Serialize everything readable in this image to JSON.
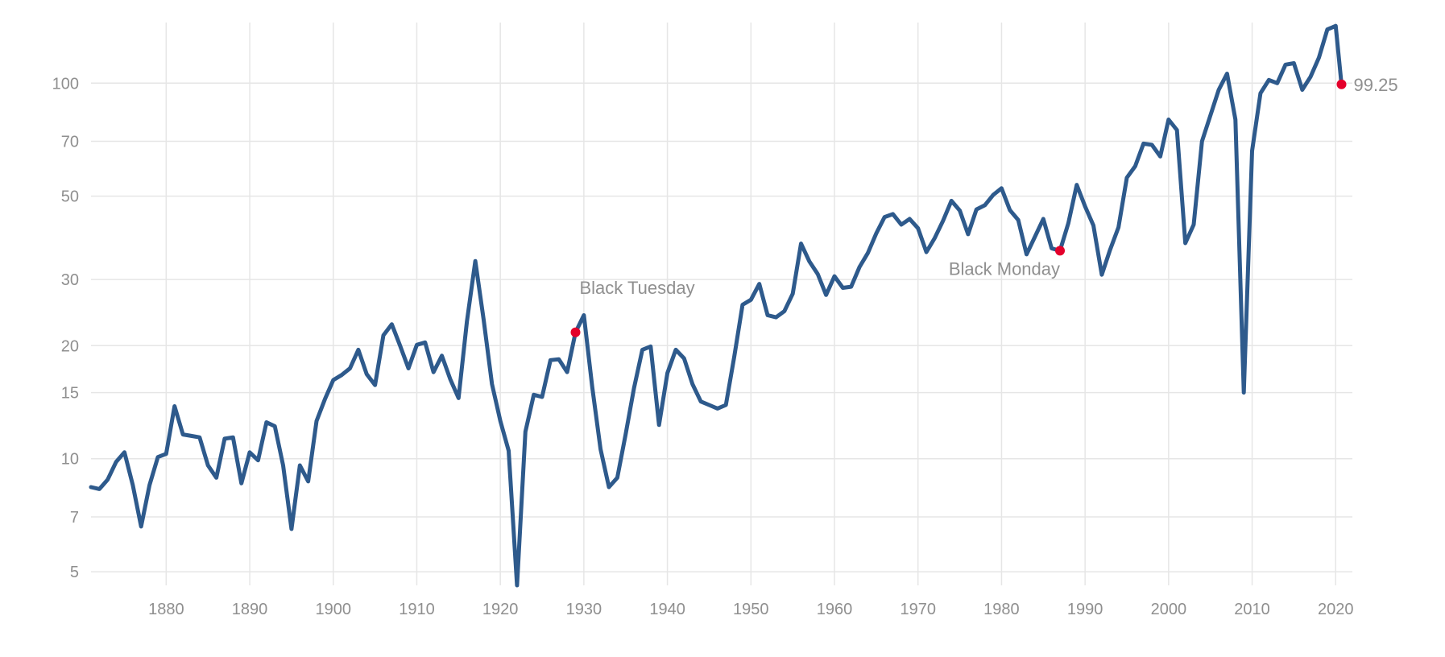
{
  "colors": {
    "line": "#2e5a8c",
    "marker": "#e4002b",
    "grid": "#e6e6e6",
    "text": "#8f8f8f"
  },
  "chart_data": {
    "type": "line",
    "title": "",
    "xlabel": "",
    "ylabel": "",
    "x_scale": "linear",
    "y_scale": "log",
    "xlim": [
      1871,
      2022
    ],
    "ylim": [
      4.6,
      145
    ],
    "grid": true,
    "legend": "none",
    "x_ticks": [
      1880,
      1890,
      1900,
      1910,
      1920,
      1930,
      1940,
      1950,
      1960,
      1970,
      1980,
      1990,
      2000,
      2010,
      2020
    ],
    "x_tick_labels": [
      "1880",
      "1890",
      "1900",
      "1910",
      "1920",
      "1930",
      "1940",
      "1950",
      "1960",
      "1970",
      "1980",
      "1990",
      "2000",
      "2010",
      "2020"
    ],
    "y_ticks": [
      5,
      7,
      10,
      15,
      20,
      30,
      50,
      70,
      100
    ],
    "y_tick_labels": [
      "5",
      "7",
      "10",
      "15",
      "20",
      "30",
      "50",
      "70",
      "100"
    ],
    "series": [
      {
        "x": [
          1871,
          1872,
          1873,
          1874,
          1875,
          1876,
          1877,
          1878,
          1879,
          1880,
          1881,
          1882,
          1883,
          1884,
          1885,
          1886,
          1887,
          1888,
          1889,
          1890,
          1891,
          1892,
          1893,
          1894,
          1895,
          1896,
          1897,
          1898,
          1899,
          1900,
          1901,
          1902,
          1903,
          1904,
          1905,
          1906,
          1907,
          1908,
          1909,
          1910,
          1911,
          1912,
          1913,
          1914,
          1915,
          1916,
          1917,
          1918,
          1919,
          1920,
          1921,
          1922,
          1923,
          1924,
          1925,
          1926,
          1927,
          1928,
          1929,
          1930,
          1931,
          1932,
          1933,
          1934,
          1935,
          1936,
          1937,
          1938,
          1939,
          1940,
          1941,
          1942,
          1943,
          1944,
          1945,
          1946,
          1947,
          1948,
          1949,
          1950,
          1951,
          1952,
          1953,
          1954,
          1955,
          1956,
          1957,
          1958,
          1959,
          1960,
          1961,
          1962,
          1963,
          1964,
          1965,
          1966,
          1967,
          1968,
          1969,
          1970,
          1971,
          1972,
          1973,
          1974,
          1975,
          1976,
          1977,
          1978,
          1979,
          1980,
          1981,
          1982,
          1983,
          1984,
          1985,
          1986,
          1987,
          1988,
          1989,
          1990,
          1991,
          1992,
          1993,
          1994,
          1995,
          1996,
          1997,
          1998,
          1999,
          2000,
          2001,
          2002,
          2003,
          2004,
          2005,
          2006,
          2007,
          2008,
          2009,
          2010,
          2011,
          2012,
          2013,
          2014,
          2015,
          2016,
          2017,
          2018,
          2019,
          2020,
          2020.7
        ],
        "y": [
          8.4,
          8.3,
          8.8,
          9.8,
          10.4,
          8.5,
          6.6,
          8.5,
          10.1,
          10.3,
          13.8,
          11.6,
          11.5,
          11.4,
          9.6,
          8.9,
          11.3,
          11.4,
          8.6,
          10.4,
          9.9,
          12.5,
          12.2,
          9.6,
          6.5,
          9.6,
          8.7,
          12.6,
          14.4,
          16.2,
          16.7,
          17.4,
          19.5,
          16.8,
          15.7,
          21.3,
          22.8,
          20.0,
          17.4,
          20.1,
          20.4,
          17.0,
          18.8,
          16.3,
          14.5,
          23.2,
          33.6,
          23.5,
          15.8,
          12.6,
          10.5,
          4.6,
          11.8,
          14.8,
          14.6,
          18.3,
          18.4,
          17.0,
          21.7,
          24.1,
          15.5,
          10.6,
          8.4,
          8.9,
          11.6,
          15.4,
          19.5,
          19.9,
          12.3,
          16.9,
          19.5,
          18.5,
          15.8,
          14.2,
          13.9,
          13.6,
          13.9,
          18.7,
          25.7,
          26.5,
          29.2,
          24.1,
          23.8,
          24.7,
          27.5,
          37.4,
          33.5,
          31.0,
          27.3,
          30.6,
          28.5,
          28.7,
          32.4,
          35.3,
          39.8,
          44.0,
          44.8,
          42.0,
          43.5,
          41.1,
          35.5,
          38.7,
          43.0,
          48.6,
          45.8,
          39.6,
          46.1,
          47.3,
          50.4,
          52.5,
          45.9,
          43.2,
          35.0,
          39.0,
          43.5,
          36.3,
          35.8,
          42.4,
          53.6,
          47.0,
          41.8,
          30.9,
          36.0,
          41.3,
          56.0,
          60.1,
          69.0,
          68.5,
          63.8,
          80.0,
          75.0,
          37.5,
          42.0,
          70.0,
          82.0,
          96.0,
          106.0,
          80.0,
          15.0,
          66.0,
          94.0,
          102.0,
          100.0,
          112.0,
          113.0,
          96.0,
          104.0,
          117.0,
          139.0,
          142.0,
          99.25
        ],
        "markers": [
          {
            "x": 1929,
            "y": 21.7,
            "label": "Black Tuesday"
          },
          {
            "x": 1987,
            "y": 35.8,
            "label": "Black Monday"
          },
          {
            "x": 2020.7,
            "y": 99.25,
            "label": "99.25"
          }
        ]
      }
    ]
  }
}
